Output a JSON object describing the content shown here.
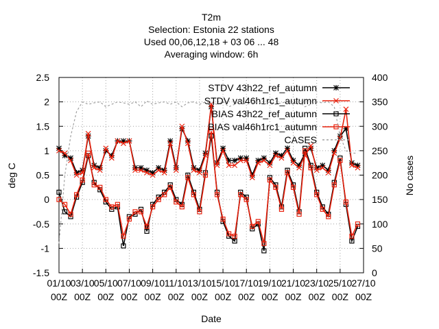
{
  "chart_data": {
    "type": "line",
    "title": [
      "T2m",
      "Selection: Estonia     22 stations",
      "Used  00,06,12,18  + 03 06 ... 48",
      "Averaging window:   6h"
    ],
    "xlabel": "Date",
    "ylabel": "deg C",
    "y2label": "No cases",
    "xlim": [
      0,
      26
    ],
    "ylim": [
      -1.5,
      2.5
    ],
    "y2lim": [
      0,
      400
    ],
    "grid": true,
    "xticks": [
      {
        "value": 0,
        "label": "01/10 00Z"
      },
      {
        "value": 2,
        "label": "03/10 00Z"
      },
      {
        "value": 4,
        "label": "05/10 00Z"
      },
      {
        "value": 6,
        "label": "07/10 00Z"
      },
      {
        "value": 8,
        "label": "09/10 00Z"
      },
      {
        "value": 10,
        "label": "11/10 00Z"
      },
      {
        "value": 12,
        "label": "13/10 00Z"
      },
      {
        "value": 14,
        "label": "15/10 00Z"
      },
      {
        "value": 16,
        "label": "17/10 00Z"
      },
      {
        "value": 18,
        "label": "19/10 00Z"
      },
      {
        "value": 20,
        "label": "21/10 00Z"
      },
      {
        "value": 22,
        "label": "23/10 00Z"
      },
      {
        "value": 24,
        "label": "25/10 00Z"
      },
      {
        "value": 26,
        "label": "27/10 00Z"
      }
    ],
    "yticks": [
      -1.5,
      -1,
      -0.5,
      0,
      0.5,
      1,
      1.5,
      2,
      2.5
    ],
    "y2ticks": [
      0,
      50,
      100,
      150,
      200,
      250,
      300,
      350,
      400
    ],
    "x": [
      0,
      0.5,
      1,
      1.5,
      2,
      2.5,
      3,
      3.5,
      4,
      4.5,
      5,
      5.5,
      6,
      6.5,
      7,
      7.5,
      8,
      8.5,
      9,
      9.5,
      10,
      10.5,
      11,
      11.5,
      12,
      12.5,
      13,
      13.5,
      14,
      14.5,
      15,
      15.5,
      16,
      16.5,
      17,
      17.5,
      18,
      18.5,
      19,
      19.5,
      20,
      20.5,
      21,
      21.5,
      22,
      22.5,
      23,
      23.5,
      24,
      24.5,
      25,
      25.5
    ],
    "series": [
      {
        "name": "STDV 43h22_ref_autumn",
        "color": "#000000",
        "marker": "star",
        "values": [
          1.05,
          0.9,
          0.85,
          0.55,
          0.6,
          1.3,
          0.7,
          0.65,
          1.0,
          0.9,
          1.2,
          1.2,
          1.2,
          0.65,
          0.65,
          0.6,
          0.55,
          0.65,
          0.6,
          1.2,
          0.65,
          1.45,
          1.2,
          0.65,
          0.6,
          0.95,
          1.9,
          0.75,
          1.05,
          0.8,
          0.8,
          0.85,
          0.85,
          0.5,
          0.8,
          0.85,
          0.75,
          0.95,
          0.9,
          1.05,
          0.8,
          0.7,
          0.95,
          1.05,
          0.65,
          0.7,
          0.6,
          1.0,
          1.3,
          1.45,
          0.75,
          0.7
        ]
      },
      {
        "name": "STDV val46h1rc1_autumn",
        "color": "#e8200c",
        "marker": "cross",
        "values": [
          1.0,
          0.95,
          0.8,
          0.5,
          0.55,
          1.35,
          0.65,
          0.6,
          1.05,
          0.85,
          1.2,
          1.15,
          1.2,
          0.6,
          0.6,
          0.55,
          0.5,
          0.6,
          0.55,
          1.15,
          0.6,
          1.5,
          1.15,
          0.6,
          0.55,
          0.9,
          1.95,
          0.7,
          1.0,
          0.7,
          0.7,
          0.8,
          0.8,
          0.45,
          0.75,
          0.8,
          0.7,
          0.9,
          0.85,
          1.0,
          0.75,
          0.65,
          0.9,
          1.1,
          0.6,
          0.65,
          0.55,
          0.95,
          1.25,
          1.85,
          0.7,
          0.65
        ]
      },
      {
        "name": "BIAS 43h22_ref_autumn",
        "color": "#000000",
        "marker": "square",
        "values": [
          0.15,
          -0.25,
          -0.35,
          0.05,
          0.35,
          0.9,
          0.35,
          0.2,
          -0.05,
          -0.2,
          -0.15,
          -0.95,
          -0.35,
          -0.3,
          -0.2,
          -0.65,
          -0.1,
          0.05,
          0.15,
          0.3,
          0.0,
          -0.1,
          0.5,
          0.15,
          -0.2,
          0.55,
          1.3,
          0.15,
          -0.45,
          -0.75,
          -0.85,
          0.15,
          0.05,
          -0.6,
          -0.5,
          -1.05,
          0.45,
          0.3,
          -0.15,
          0.6,
          0.3,
          -0.25,
          1.05,
          0.7,
          0.15,
          -0.15,
          -0.3,
          0.35,
          0.85,
          -0.1,
          -0.85,
          -0.55
        ]
      },
      {
        "name": "BIAS val46h1rc1_autumn",
        "color": "#e8200c",
        "marker": "square",
        "values": [
          0.0,
          -0.1,
          -0.3,
          0.1,
          0.4,
          0.95,
          0.3,
          0.25,
          0.0,
          -0.15,
          -0.1,
          -0.75,
          -0.4,
          -0.25,
          -0.25,
          -0.55,
          -0.15,
          0.0,
          0.1,
          0.25,
          -0.05,
          -0.15,
          0.45,
          0.1,
          -0.25,
          0.5,
          1.4,
          0.1,
          -0.4,
          -0.7,
          -0.75,
          0.1,
          0.0,
          -0.55,
          -0.45,
          -0.9,
          0.4,
          0.25,
          -0.2,
          0.55,
          0.25,
          -0.3,
          1.0,
          0.65,
          0.1,
          -0.2,
          -0.35,
          0.3,
          0.8,
          -0.05,
          -0.75,
          -0.5
        ]
      },
      {
        "name": "CASES",
        "color": "#a0a0a0",
        "axis": "y2",
        "dash": true,
        "values": [
          60,
          200,
          280,
          330,
          350,
          345,
          348,
          350,
          340,
          345,
          350,
          348,
          345,
          350,
          340,
          352,
          345,
          348,
          350,
          345,
          350,
          340,
          348,
          350,
          345,
          350,
          348,
          345,
          350,
          340,
          345,
          352,
          345,
          348,
          350,
          345,
          350,
          345,
          348,
          350,
          345,
          350,
          340,
          345,
          350,
          348,
          350,
          340,
          280,
          250,
          245,
          245
        ]
      }
    ]
  }
}
